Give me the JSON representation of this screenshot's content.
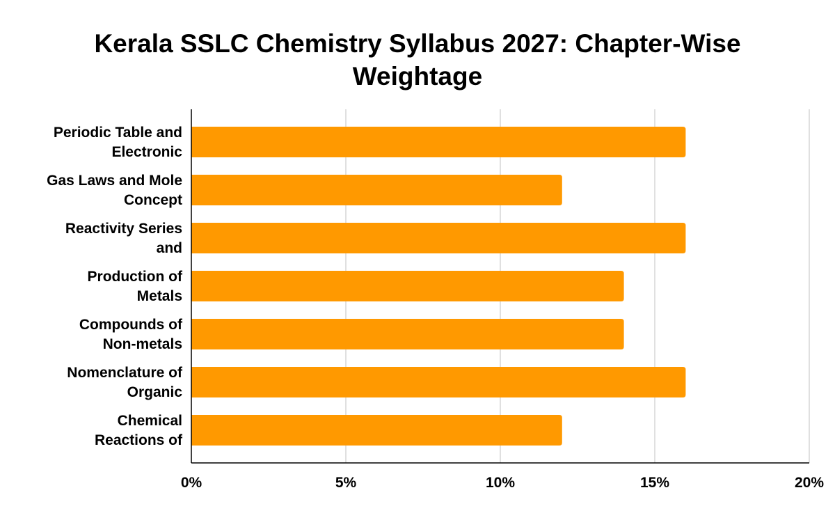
{
  "chart_data": {
    "type": "bar",
    "orientation": "horizontal",
    "title_lines": [
      "Kerala SSLC Chemistry Syllabus 2027: Chapter-Wise",
      "Weightage"
    ],
    "categories": [
      [
        "Periodic Table and",
        "Electronic"
      ],
      [
        "Gas Laws and Mole",
        "Concept"
      ],
      [
        "Reactivity Series",
        "and"
      ],
      [
        "Production of",
        "Metals"
      ],
      [
        "Compounds of",
        "Non-metals"
      ],
      [
        "Nomenclature of",
        "Organic"
      ],
      [
        "Chemical",
        "Reactions of"
      ]
    ],
    "values": [
      16,
      12,
      16,
      14,
      14,
      16,
      12
    ],
    "xlim": [
      0,
      20
    ],
    "x_ticks": [
      0,
      5,
      10,
      15,
      20
    ],
    "x_tick_labels": [
      "0%",
      "5%",
      "10%",
      "15%",
      "20%"
    ],
    "bar_color": "#ff9900",
    "grid": true,
    "legend": "none"
  }
}
